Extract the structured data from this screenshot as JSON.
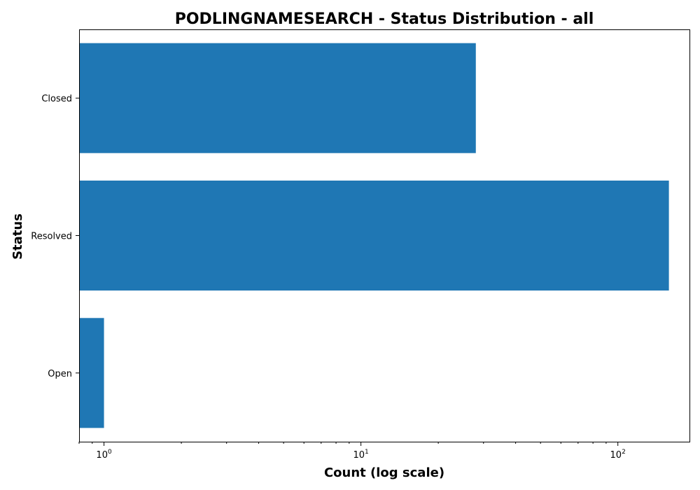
{
  "chart_data": {
    "type": "bar",
    "orientation": "horizontal",
    "title": "PODLINGNAMESEARCH - Status Distribution - all",
    "xlabel": "Count (log scale)",
    "ylabel": "Status",
    "xscale": "log",
    "xlim": [
      0.8,
      190
    ],
    "xticks": [
      {
        "value": 1,
        "label_base": "10",
        "label_exp": "0"
      },
      {
        "value": 10,
        "label_base": "10",
        "label_exp": "1"
      },
      {
        "value": 100,
        "label_base": "10",
        "label_exp": "2"
      }
    ],
    "categories": [
      "Closed",
      "Resolved",
      "Open"
    ],
    "values": [
      28,
      158,
      1
    ],
    "bar_color": "#1f77b4",
    "grid": false,
    "legend": "none"
  }
}
